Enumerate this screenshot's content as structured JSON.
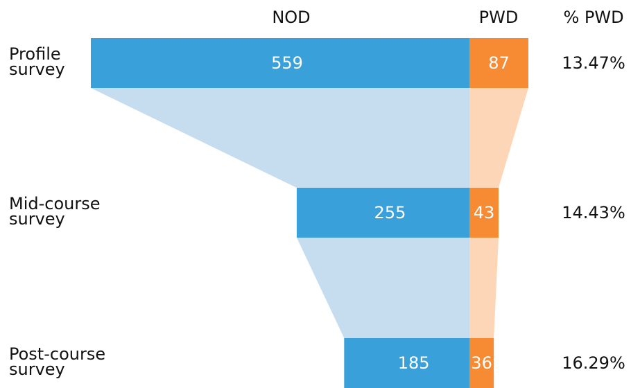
{
  "chart_data": {
    "type": "funnel",
    "categories": [
      "Profile survey",
      "Mid-course survey",
      "Post-course survey"
    ],
    "series": [
      {
        "name": "NOD",
        "color": "#3aa0da",
        "connector_color": "#c6ddf0",
        "values": [
          559,
          255,
          185
        ]
      },
      {
        "name": "PWD",
        "color": "#f68b33",
        "connector_color": "#fcd6b6",
        "values": [
          87,
          43,
          36
        ]
      }
    ],
    "share": {
      "name": "% PWD",
      "values": [
        13.47,
        14.43,
        16.29
      ],
      "value_labels": [
        "13.47%",
        "14.43%",
        "16.29%"
      ]
    }
  }
}
